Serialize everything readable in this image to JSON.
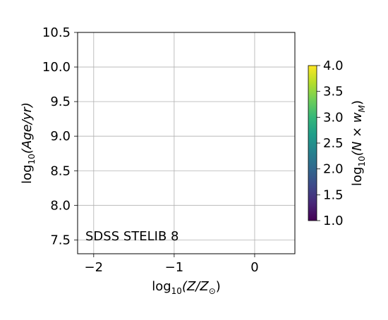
{
  "chart_data": {
    "type": "heatmap",
    "title": "",
    "xlabel": {
      "prefix": "log",
      "sub": "10",
      "body": "(Z/Z",
      "sub2": "⊙",
      "suffix": ")"
    },
    "ylabel": {
      "prefix": "log",
      "sub": "10",
      "body": "(Age/yr)"
    },
    "xlim": [
      -2.2,
      0.5
    ],
    "ylim": [
      7.3,
      10.5
    ],
    "xticks": [
      -2,
      -1,
      0
    ],
    "xtick_labels": [
      "−2",
      "−1",
      "0"
    ],
    "yticks": [
      7.5,
      8.0,
      8.5,
      9.0,
      9.5,
      10.0,
      10.5
    ],
    "ytick_labels": [
      "7.5",
      "8.0",
      "8.5",
      "9.0",
      "9.5",
      "10.0",
      "10.5"
    ],
    "grid": true,
    "annotation": "SDSS STELIB 8",
    "values": [],
    "colorbar": {
      "colormap": "viridis",
      "label": {
        "prefix": "log",
        "sub": "10",
        "body": "(N × w",
        "sub2": "M",
        "suffix": ")"
      },
      "range": [
        1.0,
        4.0
      ],
      "ticks": [
        1.0,
        1.5,
        2.0,
        2.5,
        3.0,
        3.5,
        4.0
      ],
      "tick_labels": [
        "1.0",
        "1.5",
        "2.0",
        "2.5",
        "3.0",
        "3.5",
        "4.0"
      ]
    },
    "colors": {
      "grid": "#b0b0b0",
      "axes": "#000000",
      "viridis": [
        "#440154",
        "#482878",
        "#3e4989",
        "#31688e",
        "#26828e",
        "#1f9e89",
        "#35b779",
        "#6ece58",
        "#b5de2b",
        "#fde725"
      ]
    }
  }
}
